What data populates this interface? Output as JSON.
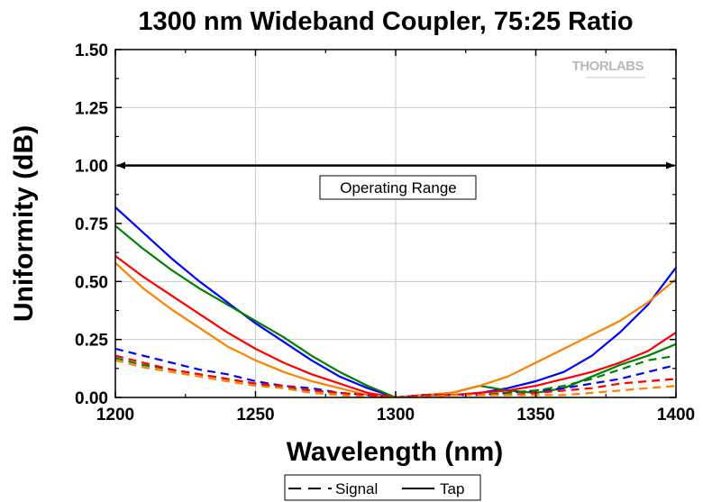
{
  "chart_data": {
    "type": "line",
    "title": "1300 nm Wideband Coupler, 75:25 Ratio",
    "xlabel": "Wavelength (nm)",
    "ylabel": "Uniformity (dB)",
    "xlim": [
      1200,
      1400
    ],
    "ylim": [
      0,
      1.5
    ],
    "x_ticks": [
      1200,
      1250,
      1300,
      1350,
      1400
    ],
    "y_ticks": [
      0,
      0.25,
      0.5,
      0.75,
      1.0,
      1.25,
      1.5
    ],
    "x_tick_labels": [
      "1200",
      "1250",
      "1300",
      "1350",
      "1400"
    ],
    "y_tick_labels": [
      "0.00",
      "0.25",
      "0.50",
      "0.75",
      "1.00",
      "1.25",
      "1.50"
    ],
    "grid": true,
    "legend_position": "bottom-center",
    "legend": [
      {
        "label": "Signal",
        "style": "dashed"
      },
      {
        "label": "Tap",
        "style": "solid"
      }
    ],
    "annotation": {
      "text": "Operating Range",
      "y": 1.0,
      "x_range": [
        1200,
        1400
      ]
    },
    "logo_text": "THORLABS",
    "series": [
      {
        "color": "#0000ff",
        "style": "solid",
        "points": [
          [
            1200,
            0.82
          ],
          [
            1210,
            0.71
          ],
          [
            1220,
            0.6
          ],
          [
            1230,
            0.5
          ],
          [
            1240,
            0.41
          ],
          [
            1250,
            0.32
          ],
          [
            1260,
            0.24
          ],
          [
            1270,
            0.16
          ],
          [
            1280,
            0.09
          ],
          [
            1290,
            0.04
          ],
          [
            1300,
            0.0
          ],
          [
            1310,
            0.01
          ],
          [
            1320,
            0.01
          ],
          [
            1330,
            0.02
          ],
          [
            1340,
            0.04
          ],
          [
            1350,
            0.07
          ],
          [
            1360,
            0.11
          ],
          [
            1370,
            0.18
          ],
          [
            1380,
            0.28
          ],
          [
            1390,
            0.4
          ],
          [
            1400,
            0.56
          ]
        ]
      },
      {
        "color": "#008000",
        "style": "solid",
        "points": [
          [
            1200,
            0.74
          ],
          [
            1210,
            0.64
          ],
          [
            1220,
            0.55
          ],
          [
            1230,
            0.47
          ],
          [
            1240,
            0.4
          ],
          [
            1250,
            0.33
          ],
          [
            1260,
            0.26
          ],
          [
            1270,
            0.18
          ],
          [
            1280,
            0.11
          ],
          [
            1290,
            0.05
          ],
          [
            1300,
            0.0
          ],
          [
            1310,
            0.01
          ],
          [
            1320,
            0.02
          ],
          [
            1330,
            0.05
          ],
          [
            1340,
            0.03
          ],
          [
            1350,
            0.02
          ],
          [
            1360,
            0.04
          ],
          [
            1370,
            0.09
          ],
          [
            1380,
            0.14
          ],
          [
            1390,
            0.18
          ],
          [
            1400,
            0.23
          ]
        ]
      },
      {
        "color": "#ff0000",
        "style": "solid",
        "points": [
          [
            1200,
            0.61
          ],
          [
            1210,
            0.52
          ],
          [
            1220,
            0.44
          ],
          [
            1230,
            0.36
          ],
          [
            1240,
            0.28
          ],
          [
            1250,
            0.21
          ],
          [
            1260,
            0.15
          ],
          [
            1270,
            0.1
          ],
          [
            1280,
            0.06
          ],
          [
            1290,
            0.02
          ],
          [
            1300,
            0.0
          ],
          [
            1310,
            0.01
          ],
          [
            1320,
            0.01
          ],
          [
            1330,
            0.02
          ],
          [
            1340,
            0.03
          ],
          [
            1350,
            0.05
          ],
          [
            1360,
            0.08
          ],
          [
            1370,
            0.11
          ],
          [
            1380,
            0.15
          ],
          [
            1390,
            0.2
          ],
          [
            1400,
            0.28
          ]
        ]
      },
      {
        "color": "#ff8000",
        "style": "solid",
        "points": [
          [
            1200,
            0.58
          ],
          [
            1210,
            0.47
          ],
          [
            1220,
            0.38
          ],
          [
            1230,
            0.3
          ],
          [
            1240,
            0.22
          ],
          [
            1250,
            0.16
          ],
          [
            1260,
            0.11
          ],
          [
            1270,
            0.07
          ],
          [
            1280,
            0.04
          ],
          [
            1290,
            0.01
          ],
          [
            1300,
            0.0
          ],
          [
            1310,
            0.01
          ],
          [
            1320,
            0.02
          ],
          [
            1330,
            0.05
          ],
          [
            1340,
            0.09
          ],
          [
            1350,
            0.15
          ],
          [
            1360,
            0.21
          ],
          [
            1370,
            0.27
          ],
          [
            1380,
            0.33
          ],
          [
            1390,
            0.41
          ],
          [
            1400,
            0.51
          ]
        ]
      },
      {
        "color": "#0000ff",
        "style": "dashed",
        "points": [
          [
            1200,
            0.21
          ],
          [
            1210,
            0.18
          ],
          [
            1220,
            0.15
          ],
          [
            1230,
            0.12
          ],
          [
            1240,
            0.1
          ],
          [
            1250,
            0.07
          ],
          [
            1260,
            0.05
          ],
          [
            1270,
            0.04
          ],
          [
            1280,
            0.02
          ],
          [
            1290,
            0.01
          ],
          [
            1300,
            0.0
          ],
          [
            1310,
            0.01
          ],
          [
            1320,
            0.01
          ],
          [
            1330,
            0.01
          ],
          [
            1340,
            0.02
          ],
          [
            1350,
            0.03
          ],
          [
            1360,
            0.04
          ],
          [
            1370,
            0.06
          ],
          [
            1380,
            0.08
          ],
          [
            1390,
            0.11
          ],
          [
            1400,
            0.14
          ]
        ]
      },
      {
        "color": "#008000",
        "style": "dashed",
        "points": [
          [
            1200,
            0.17
          ],
          [
            1210,
            0.14
          ],
          [
            1220,
            0.12
          ],
          [
            1230,
            0.1
          ],
          [
            1240,
            0.08
          ],
          [
            1250,
            0.06
          ],
          [
            1260,
            0.04
          ],
          [
            1270,
            0.03
          ],
          [
            1280,
            0.02
          ],
          [
            1290,
            0.01
          ],
          [
            1300,
            0.0
          ],
          [
            1310,
            0.01
          ],
          [
            1320,
            0.01
          ],
          [
            1330,
            0.01
          ],
          [
            1340,
            0.02
          ],
          [
            1350,
            0.03
          ],
          [
            1360,
            0.05
          ],
          [
            1370,
            0.08
          ],
          [
            1380,
            0.12
          ],
          [
            1390,
            0.16
          ],
          [
            1400,
            0.18
          ]
        ]
      },
      {
        "color": "#ff0000",
        "style": "dashed",
        "points": [
          [
            1200,
            0.18
          ],
          [
            1210,
            0.15
          ],
          [
            1220,
            0.12
          ],
          [
            1230,
            0.1
          ],
          [
            1240,
            0.08
          ],
          [
            1250,
            0.06
          ],
          [
            1260,
            0.05
          ],
          [
            1270,
            0.03
          ],
          [
            1280,
            0.02
          ],
          [
            1290,
            0.01
          ],
          [
            1300,
            0.0
          ],
          [
            1310,
            0.01
          ],
          [
            1320,
            0.01
          ],
          [
            1330,
            0.01
          ],
          [
            1340,
            0.01
          ],
          [
            1350,
            0.02
          ],
          [
            1360,
            0.03
          ],
          [
            1370,
            0.04
          ],
          [
            1380,
            0.06
          ],
          [
            1390,
            0.07
          ],
          [
            1400,
            0.08
          ]
        ]
      },
      {
        "color": "#ff8000",
        "style": "dashed",
        "points": [
          [
            1200,
            0.16
          ],
          [
            1210,
            0.13
          ],
          [
            1220,
            0.11
          ],
          [
            1230,
            0.09
          ],
          [
            1240,
            0.07
          ],
          [
            1250,
            0.05
          ],
          [
            1260,
            0.04
          ],
          [
            1270,
            0.02
          ],
          [
            1280,
            0.01
          ],
          [
            1290,
            0.0
          ],
          [
            1300,
            0.0
          ],
          [
            1310,
            0.0
          ],
          [
            1320,
            0.01
          ],
          [
            1330,
            0.01
          ],
          [
            1340,
            0.01
          ],
          [
            1350,
            0.01
          ],
          [
            1360,
            0.01
          ],
          [
            1370,
            0.02
          ],
          [
            1380,
            0.03
          ],
          [
            1390,
            0.04
          ],
          [
            1400,
            0.05
          ]
        ]
      }
    ]
  }
}
